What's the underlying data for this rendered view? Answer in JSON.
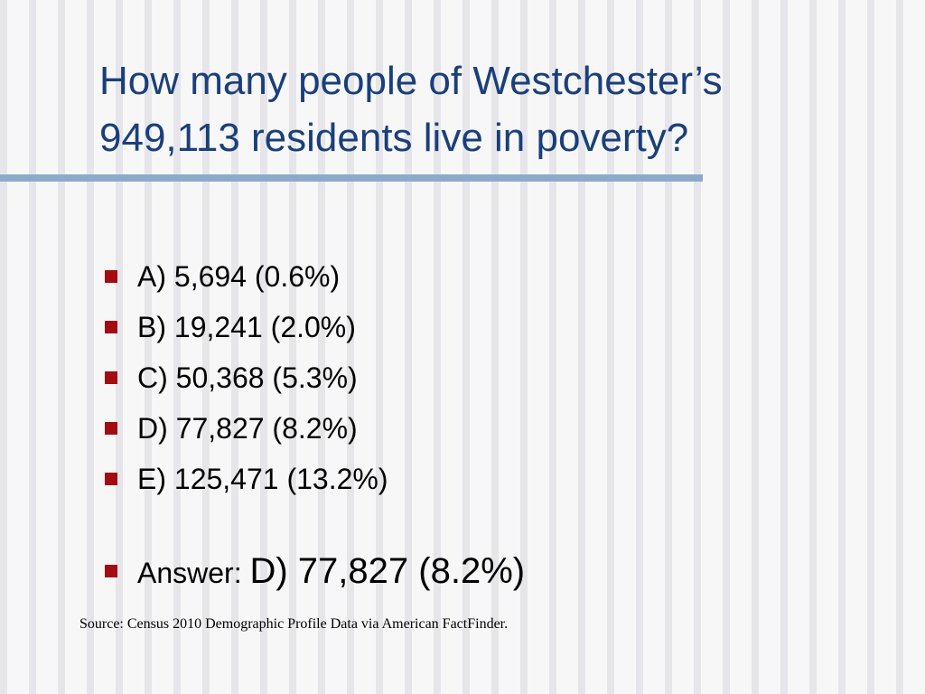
{
  "slide": {
    "title_line1": "How many people of Westchester’s",
    "title_line2": "949,113 residents live in poverty?",
    "options": [
      {
        "label": "A) 5,694 (0.6%)"
      },
      {
        "label": "B) 19,241 (2.0%)"
      },
      {
        "label": "C) 50,368 (5.3%)"
      },
      {
        "label": "D) 77,827 (8.2%)"
      },
      {
        "label": "E) 125,471 (13.2%)"
      }
    ],
    "answer": {
      "label": "Answer: ",
      "value": "D) 77,827 (8.2%)"
    },
    "source": "Source: Census 2010 Demographic Profile Data via American FactFinder."
  },
  "colors": {
    "title": "#1a3f7a",
    "divider": "#8eaacb",
    "bullet": "#a30d12"
  },
  "icons": {
    "bullet": "square-bullet-icon"
  }
}
